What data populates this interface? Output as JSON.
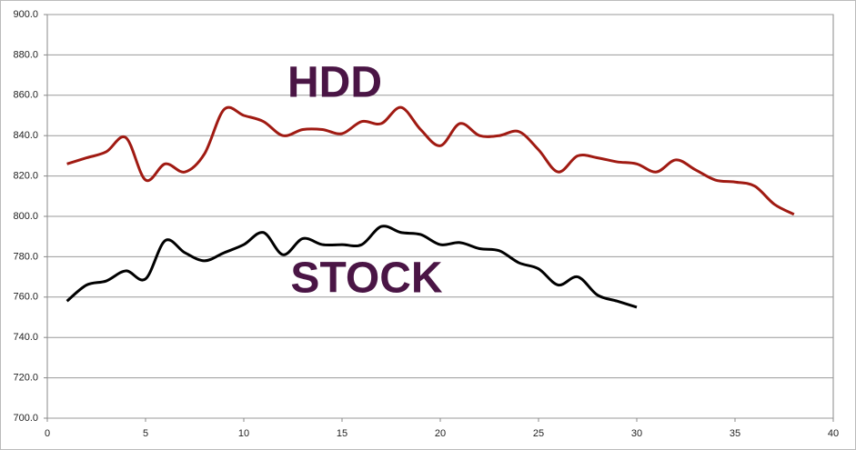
{
  "chart_data": {
    "type": "line",
    "series": [
      {
        "name": "HDD",
        "color": "#a01a12",
        "x": [
          1,
          2,
          3,
          4,
          5,
          6,
          7,
          8,
          9,
          10,
          11,
          12,
          13,
          14,
          15,
          16,
          17,
          18,
          19,
          20,
          21,
          22,
          23,
          24,
          25,
          26,
          27,
          28,
          29,
          30,
          31,
          32,
          33,
          34,
          35,
          36,
          37,
          38
        ],
        "values": [
          826,
          829,
          832,
          839,
          818,
          826,
          822,
          831,
          853,
          850,
          847,
          840,
          843,
          843,
          841,
          847,
          846,
          854,
          843,
          835,
          846,
          840,
          840,
          842,
          833,
          822,
          830,
          829,
          827,
          826,
          822,
          828,
          823,
          818,
          817,
          815,
          806,
          801
        ]
      },
      {
        "name": "STOCK",
        "color": "#000000",
        "x": [
          1,
          2,
          3,
          4,
          5,
          6,
          7,
          8,
          9,
          10,
          11,
          12,
          13,
          14,
          15,
          16,
          17,
          18,
          19,
          20,
          21,
          22,
          23,
          24,
          25,
          26,
          27,
          28,
          29,
          30
        ],
        "values": [
          758,
          766,
          768,
          773,
          769,
          788,
          782,
          778,
          782,
          786,
          792,
          781,
          789,
          786,
          786,
          786,
          795,
          792,
          791,
          786,
          787,
          784,
          783,
          777,
          774,
          766,
          770,
          761,
          758,
          755
        ]
      }
    ],
    "xlim": [
      0,
      40
    ],
    "xticks": [
      0,
      5,
      10,
      15,
      20,
      25,
      30,
      35,
      40
    ],
    "ylim": [
      700,
      900
    ],
    "yticks": [
      {
        "value": 700,
        "label": "700.0"
      },
      {
        "value": 720,
        "label": "720.0"
      },
      {
        "value": 740,
        "label": "740.0"
      },
      {
        "value": 760,
        "label": "760.0"
      },
      {
        "value": 780,
        "label": "780.0"
      },
      {
        "value": 800,
        "label": "800.0"
      },
      {
        "value": 820,
        "label": "820.0"
      },
      {
        "value": 840,
        "label": "840.0"
      },
      {
        "value": 860,
        "label": "860.0"
      },
      {
        "value": 880,
        "label": "880.0"
      },
      {
        "value": 900,
        "label": "900.0"
      }
    ],
    "grid": true
  }
}
